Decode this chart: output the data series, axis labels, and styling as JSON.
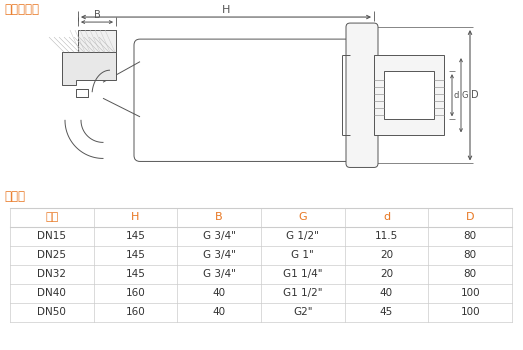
{
  "title_diagram": "外型尺寸圖",
  "title_table": "尺寸表",
  "orange": "#E87722",
  "bg_color": "#ffffff",
  "lc": "#555555",
  "hatch_color": "#aaaaaa",
  "columns": [
    "規格",
    "H",
    "B",
    "G",
    "d",
    "D"
  ],
  "rows": [
    [
      "DN15",
      "145",
      "G 3/4\"",
      "G 1/2\"",
      "11.5",
      "80"
    ],
    [
      "DN25",
      "145",
      "G 3/4\"",
      "G 1\"",
      "20",
      "80"
    ],
    [
      "DN32",
      "145",
      "G 3/4\"",
      "G1 1/4\"",
      "20",
      "80"
    ],
    [
      "DN40",
      "160",
      "40",
      "G1 1/2\"",
      "40",
      "100"
    ],
    [
      "DN50",
      "160",
      "40",
      "G2\"",
      "45",
      "100"
    ]
  ]
}
